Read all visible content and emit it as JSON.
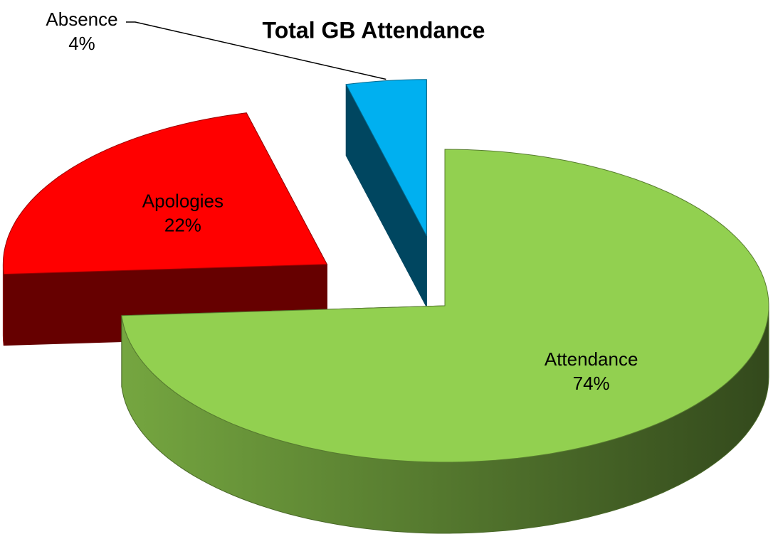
{
  "chart_data": {
    "type": "pie",
    "title": "Total GB Attendance",
    "categories": [
      "Attendance",
      "Apologies",
      "Absence"
    ],
    "values": [
      74,
      22,
      4
    ],
    "value_labels": [
      "74%",
      "22%",
      "4%"
    ],
    "colors": [
      "#92d050",
      "#ff0000",
      "#00b0f0"
    ]
  }
}
